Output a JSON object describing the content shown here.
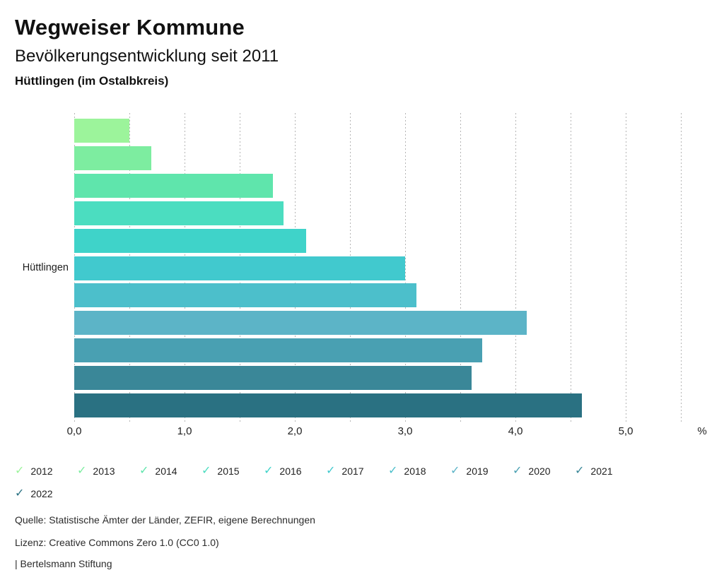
{
  "header": {
    "title": "Wegweiser Kommune",
    "subtitle": "Bevölkerungsentwicklung seit 2011",
    "region": "Hüttlingen (im Ostalbkreis)"
  },
  "chart_data": {
    "type": "bar",
    "orientation": "horizontal",
    "category": "Hüttlingen",
    "unit": "%",
    "xlim": [
      0,
      5.5
    ],
    "grid_step": 0.5,
    "grid_style": "dotted",
    "legend_position": "bottom",
    "legend_check_glyph": "✓",
    "series": [
      {
        "name": "2012",
        "value": 0.5,
        "color": "#9cf49b"
      },
      {
        "name": "2013",
        "value": 0.7,
        "color": "#7deda0"
      },
      {
        "name": "2014",
        "value": 1.8,
        "color": "#5fe5ac"
      },
      {
        "name": "2015",
        "value": 1.9,
        "color": "#4bddc0"
      },
      {
        "name": "2016",
        "value": 2.1,
        "color": "#3fd3c9"
      },
      {
        "name": "2017",
        "value": 3.0,
        "color": "#41c9ce"
      },
      {
        "name": "2018",
        "value": 3.1,
        "color": "#4cbfcb"
      },
      {
        "name": "2019",
        "value": 4.1,
        "color": "#5cb4c7"
      },
      {
        "name": "2020",
        "value": 3.7,
        "color": "#49a0b2"
      },
      {
        "name": "2021",
        "value": 3.6,
        "color": "#3a8798"
      },
      {
        "name": "2022",
        "value": 4.6,
        "color": "#2a7182"
      }
    ],
    "x_ticks": [
      {
        "label": "0,0",
        "value": 0
      },
      {
        "label": "1,0",
        "value": 1
      },
      {
        "label": "2,0",
        "value": 2
      },
      {
        "label": "3,0",
        "value": 3
      },
      {
        "label": "4,0",
        "value": 4
      },
      {
        "label": "5,0",
        "value": 5
      }
    ]
  },
  "footer": {
    "source": "Quelle: Statistische Ämter der Länder, ZEFIR, eigene Berechnungen",
    "license": "Lizenz: Creative Commons Zero 1.0 (CC0 1.0)",
    "brand": "| Bertelsmann Stiftung"
  }
}
